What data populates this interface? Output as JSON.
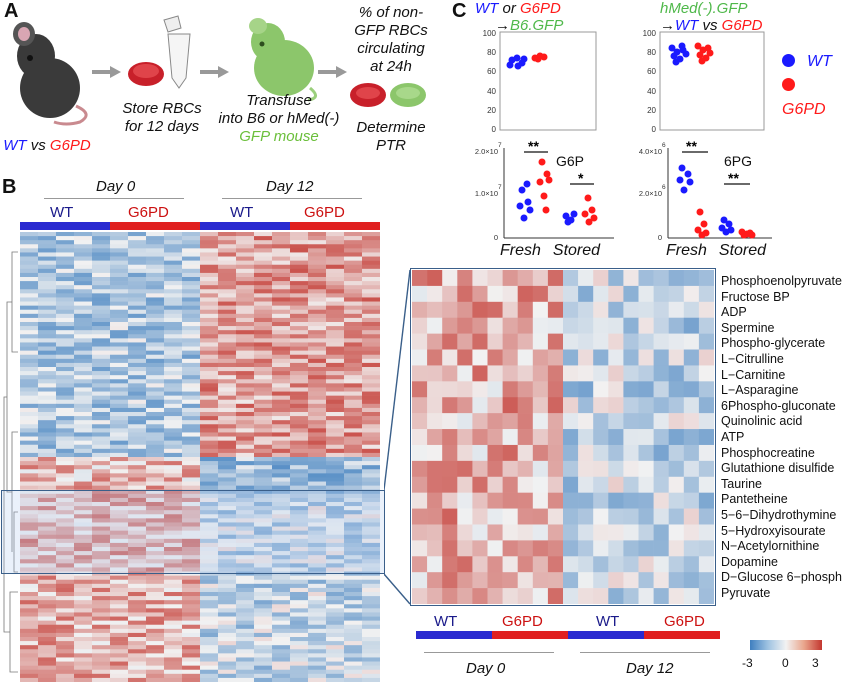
{
  "panels": {
    "a": "A",
    "b": "B",
    "c": "C"
  },
  "panel_a": {
    "mouse_label": {
      "wt": "WT",
      "vs": " vs ",
      "g6pd": "G6PD"
    },
    "step_store": [
      "Store RBCs",
      "for 12 days"
    ],
    "step_transfuse": [
      "Transfuse",
      "into B6 or hMed(-)"
    ],
    "step_transfuse_green": "GFP mouse",
    "step_percent": [
      "% of non-",
      "GFP RBCs",
      "circulating",
      "at 24h"
    ],
    "step_determine": [
      "Determine",
      "PTR"
    ]
  },
  "panel_c": {
    "left_title": {
      "wt": "WT",
      "or": " or ",
      "g6pd": "G6PD",
      "arrow": "→",
      "target": "B6.GFP"
    },
    "right_title": {
      "source": "hMed(-).GFP",
      "arrow": "→",
      "wt": "WT",
      "vs": " vs ",
      "g6pd": "G6PD"
    },
    "legend": [
      {
        "name": "WT",
        "color": "#1a1aff"
      },
      {
        "name": "G6PD",
        "color": "#ff1a1a"
      }
    ],
    "g6p_label": "G6P",
    "sixpg_label": "6PG",
    "x_categories": [
      "Fresh",
      "Stored"
    ],
    "sig_fresh": "**",
    "sig_stored_g6p": "*",
    "sig_stored_6pg": "**",
    "top_yticks": [
      "0",
      "20",
      "40",
      "60",
      "80",
      "100"
    ],
    "g6p_yticks": [
      "0",
      "1.0×10",
      "2.0×10"
    ],
    "g6p_exp": "7",
    "sixpg_yticks": [
      "0",
      "2.0×10",
      "4.0×10"
    ],
    "sixpg_exp": "6"
  },
  "panel_b": {
    "day0": "Day 0",
    "day12": "Day 12",
    "groups": [
      "WT",
      "G6PD",
      "WT",
      "G6PD"
    ]
  },
  "zoom": {
    "metabolites": [
      "Phosphoenolpyruvate",
      "Fructose BP",
      "ADP",
      "Spermine",
      "Phospho-glycerate",
      "L−Citrulline",
      "L−Carnitine",
      "L−Asparagine",
      "6Phospho-gluconate",
      "Quinolinic acid",
      "ATP",
      "Phosphocreatine",
      "Glutathione disulfide",
      "Taurine",
      "Pantetheine",
      "5−6−Dihydrothymine",
      "5−Hydroxyisourate",
      "N−Acetylornithine",
      "Dopamine",
      "D−Glucose 6−phosph",
      "Pyruvate"
    ],
    "groups": [
      "WT",
      "G6PD",
      "WT",
      "G6PD"
    ],
    "day0": "Day 0",
    "day12": "Day 12"
  },
  "colorbar": {
    "ticks": [
      "-3",
      "0",
      "3"
    ]
  },
  "colors": {
    "wt": "#1a1aff",
    "g6pd": "#ff1a1a",
    "gfp": "#6bbf3b",
    "hm_low": "#3f7fbf",
    "hm_mid": "#f2f2f2",
    "hm_high": "#c3362f"
  }
}
